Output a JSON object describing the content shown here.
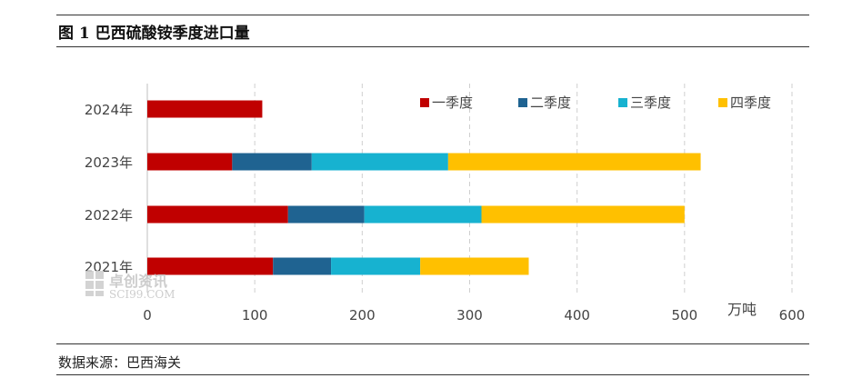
{
  "title": "图 1  巴西硫酸铵季度进口量",
  "source": "数据来源：巴西海关",
  "watermark": {
    "name": "卓创资讯",
    "domain": "SCI99.COM"
  },
  "chart_data": {
    "type": "bar",
    "orientation": "horizontal",
    "stacked": true,
    "categories": [
      "2024年",
      "2023年",
      "2022年",
      "2021年"
    ],
    "series": [
      {
        "name": "一季度",
        "color": "#C00000",
        "values": [
          107,
          79,
          131,
          117
        ]
      },
      {
        "name": "二季度",
        "color": "#1F6391",
        "values": [
          0,
          74,
          71,
          54
        ]
      },
      {
        "name": "三季度",
        "color": "#17B2D0",
        "values": [
          0,
          127,
          109,
          83
        ]
      },
      {
        "name": "四季度",
        "color": "#FFC000",
        "values": [
          0,
          235,
          189,
          101
        ]
      }
    ],
    "xlim": [
      0,
      600
    ],
    "xticks": [
      0,
      100,
      200,
      300,
      400,
      500,
      600
    ],
    "unit": "万吨",
    "grid": "vertical-dashed",
    "legend": "top-right"
  }
}
